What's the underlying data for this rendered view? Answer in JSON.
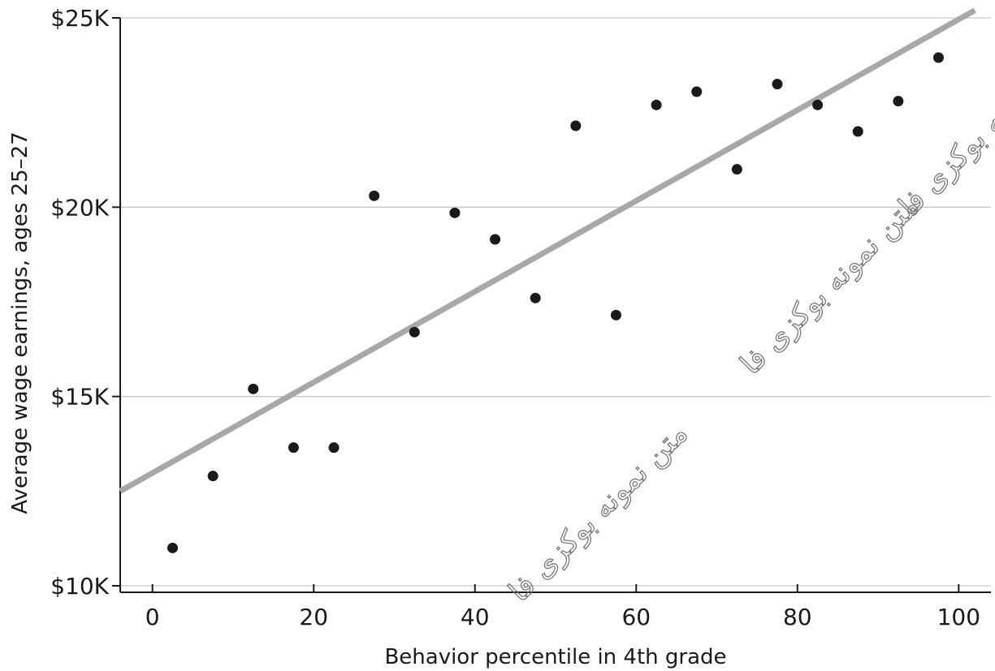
{
  "chart_data": {
    "type": "scatter",
    "title": "",
    "xlabel": "Behavior percentile in 4th grade",
    "ylabel": "Average wage earnings, ages 25–27",
    "xlim": [
      -4,
      104
    ],
    "ylim": [
      9800,
      25000
    ],
    "x_ticks": [
      0,
      20,
      40,
      60,
      80,
      100
    ],
    "x_tick_labels": [
      "0",
      "20",
      "40",
      "60",
      "80",
      "100"
    ],
    "y_ticks": [
      10000,
      15000,
      20000,
      25000
    ],
    "y_tick_labels": [
      "$10K",
      "$15K",
      "$20K",
      "$25K"
    ],
    "grid": "horizontal",
    "point_color": "#1a1a1a",
    "fit_line_color": "#a8a8a8",
    "points": [
      {
        "x": 2.5,
        "y": 11000
      },
      {
        "x": 7.5,
        "y": 12900
      },
      {
        "x": 12.5,
        "y": 15200
      },
      {
        "x": 17.5,
        "y": 13650
      },
      {
        "x": 22.5,
        "y": 13650
      },
      {
        "x": 27.5,
        "y": 20300
      },
      {
        "x": 32.5,
        "y": 16700
      },
      {
        "x": 37.5,
        "y": 19850
      },
      {
        "x": 42.5,
        "y": 19150
      },
      {
        "x": 47.5,
        "y": 17600
      },
      {
        "x": 52.5,
        "y": 22150
      },
      {
        "x": 57.5,
        "y": 17150
      },
      {
        "x": 62.5,
        "y": 22700
      },
      {
        "x": 67.5,
        "y": 23050
      },
      {
        "x": 72.5,
        "y": 21000
      },
      {
        "x": 77.5,
        "y": 23250
      },
      {
        "x": 82.5,
        "y": 22700
      },
      {
        "x": 87.5,
        "y": 22000
      },
      {
        "x": 92.5,
        "y": 22800
      },
      {
        "x": 97.5,
        "y": 23950
      }
    ],
    "fit_line": {
      "x": [
        -4,
        102
      ],
      "y": [
        12500,
        25200
      ]
    }
  },
  "watermark": {
    "text": "متن نمونه بوکزی فا"
  }
}
